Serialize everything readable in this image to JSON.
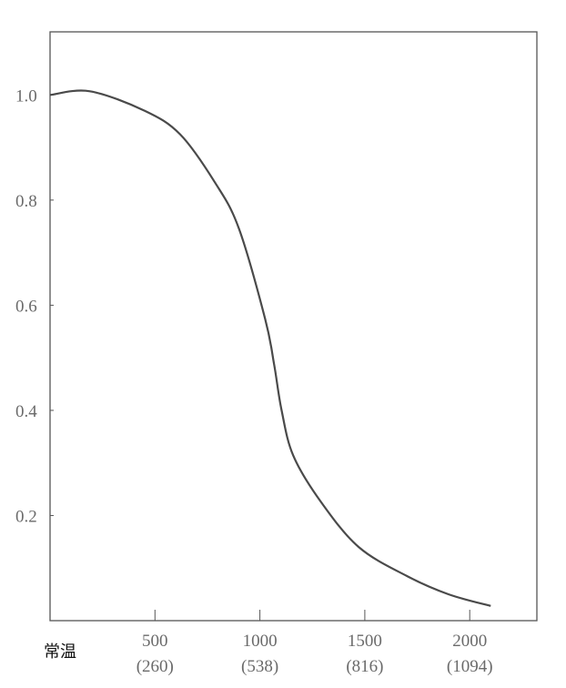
{
  "chart_data": {
    "type": "line",
    "title": "",
    "xlabel": "",
    "ylabel": "",
    "xlim": [
      0,
      2320
    ],
    "ylim": [
      0,
      1.12
    ],
    "grid": false,
    "origin_label": "常温",
    "x_ticks": [
      {
        "value": 500,
        "label": "500",
        "sublabel": "(260)"
      },
      {
        "value": 1000,
        "label": "1000",
        "sublabel": "(538)"
      },
      {
        "value": 1500,
        "label": "1500",
        "sublabel": "(816)"
      },
      {
        "value": 2000,
        "label": "2000",
        "sublabel": "(1094)"
      }
    ],
    "y_ticks": [
      {
        "value": 0.2,
        "label": "0.2"
      },
      {
        "value": 0.4,
        "label": "0.4"
      },
      {
        "value": 0.6,
        "label": "0.6"
      },
      {
        "value": 0.8,
        "label": "0.8"
      },
      {
        "value": 1.0,
        "label": "1.0"
      }
    ],
    "series": [
      {
        "color": "#4a4a4a",
        "x": [
          0,
          190,
          450,
          620,
          785,
          899,
          1025,
          1068,
          1103,
          1159,
          1289,
          1471,
          1700,
          1900,
          2100
        ],
        "y": [
          1.0,
          1.007,
          0.97,
          0.925,
          0.834,
          0.747,
          0.574,
          0.487,
          0.401,
          0.314,
          0.227,
          0.14,
          0.085,
          0.05,
          0.028
        ]
      }
    ]
  }
}
